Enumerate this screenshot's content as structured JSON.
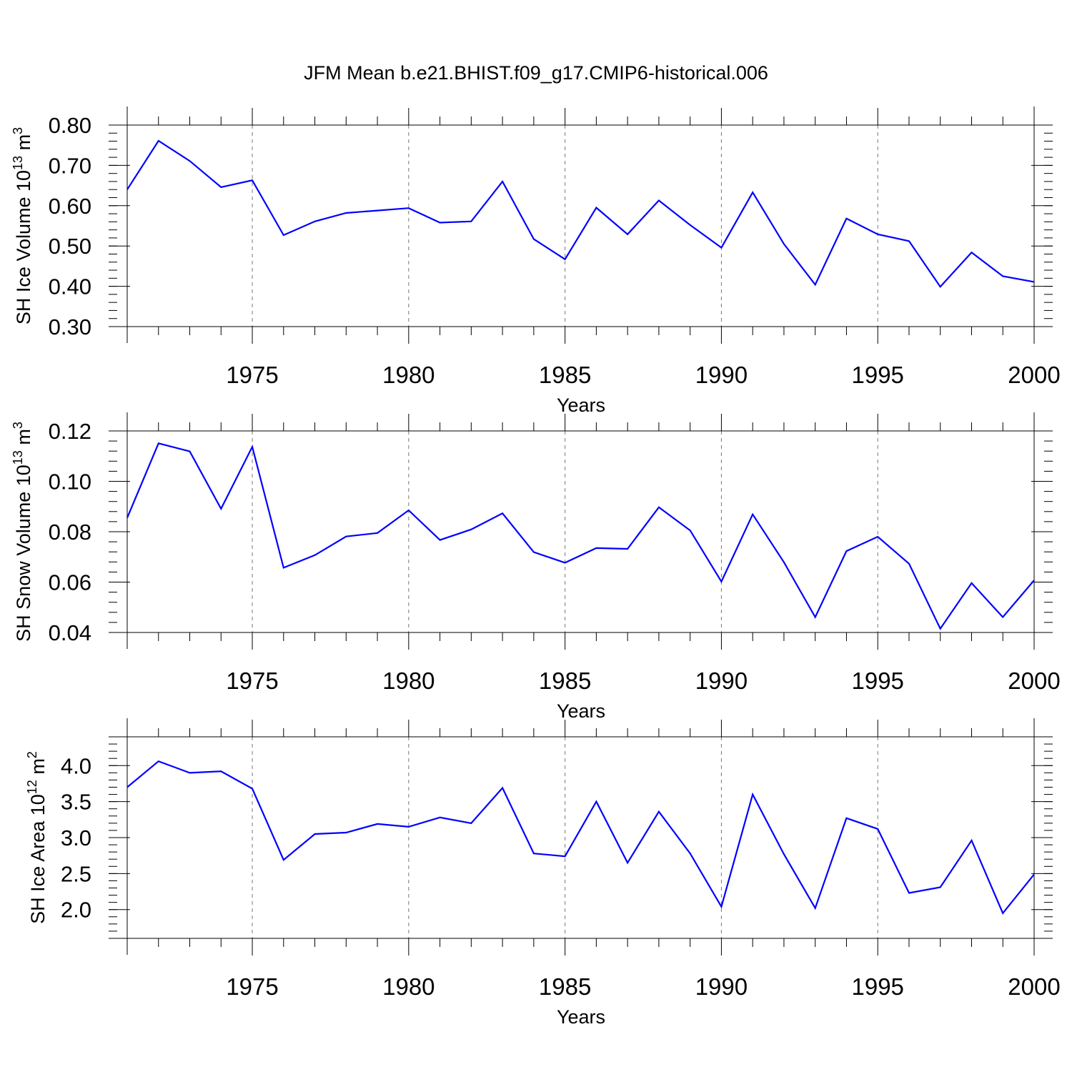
{
  "figure": {
    "title": "JFM Mean b.e21.BHIST.f09_g17.CMIP6-historical.006"
  },
  "chart_data": [
    {
      "type": "line",
      "xlabel": "Years",
      "ylabel": "SH Ice Volume 10",
      "ylabel_exponent": "13",
      "ylabel_unit": "m",
      "ylabel_unit_exponent": "3",
      "xlim": [
        1971,
        2000
      ],
      "ylim": [
        0.3,
        0.8
      ],
      "xticks": [
        1975,
        1980,
        1985,
        1990,
        1995,
        2000
      ],
      "yticks": [
        "0.30",
        "0.40",
        "0.50",
        "0.60",
        "0.70",
        "0.80"
      ],
      "y_minor_step": 0.02,
      "vertical_grid_dashed": true,
      "color": "#0000ff",
      "x": [
        1971,
        1972,
        1973,
        1974,
        1975,
        1976,
        1977,
        1978,
        1979,
        1980,
        1981,
        1982,
        1983,
        1984,
        1985,
        1986,
        1987,
        1988,
        1989,
        1990,
        1991,
        1992,
        1993,
        1994,
        1995,
        1996,
        1997,
        1998,
        1999,
        2000
      ],
      "y": [
        0.64,
        0.761,
        0.711,
        0.646,
        0.663,
        0.527,
        0.561,
        0.582,
        0.588,
        0.594,
        0.558,
        0.561,
        0.66,
        0.517,
        0.467,
        0.595,
        0.529,
        0.613,
        0.552,
        0.496,
        0.633,
        0.505,
        0.404,
        0.568,
        0.529,
        0.512,
        0.399,
        0.484,
        0.425,
        0.411
      ]
    },
    {
      "type": "line",
      "xlabel": "Years",
      "ylabel": "SH Snow Volume 10",
      "ylabel_exponent": "13",
      "ylabel_unit": "m",
      "ylabel_unit_exponent": "3",
      "xlim": [
        1971,
        2000
      ],
      "ylim": [
        0.04,
        0.12
      ],
      "xticks": [
        1975,
        1980,
        1985,
        1990,
        1995,
        2000
      ],
      "yticks": [
        "0.04",
        "0.06",
        "0.08",
        "0.10",
        "0.12"
      ],
      "y_minor_step": 0.004,
      "vertical_grid_dashed": true,
      "color": "#0000ff",
      "x": [
        1971,
        1972,
        1973,
        1974,
        1975,
        1976,
        1977,
        1978,
        1979,
        1980,
        1981,
        1982,
        1983,
        1984,
        1985,
        1986,
        1987,
        1988,
        1989,
        1990,
        1991,
        1992,
        1993,
        1994,
        1995,
        1996,
        1997,
        1998,
        1999,
        2000
      ],
      "y": [
        0.0855,
        0.1151,
        0.1119,
        0.0891,
        0.1137,
        0.0657,
        0.0707,
        0.0781,
        0.0795,
        0.0885,
        0.0767,
        0.0809,
        0.0873,
        0.0719,
        0.0677,
        0.0735,
        0.0732,
        0.0897,
        0.0805,
        0.0602,
        0.0869,
        0.0679,
        0.0461,
        0.0723,
        0.078,
        0.0673,
        0.0415,
        0.0596,
        0.0461,
        0.0607
      ]
    },
    {
      "type": "line",
      "xlabel": "Years",
      "ylabel": "SH Ice Area 10",
      "ylabel_exponent": "12",
      "ylabel_unit": "m",
      "ylabel_unit_exponent": "2",
      "xlim": [
        1971,
        2000
      ],
      "ylim": [
        1.6,
        4.4
      ],
      "xticks": [
        1975,
        1980,
        1985,
        1990,
        1995,
        2000
      ],
      "yticks": [
        "2.0",
        "2.5",
        "3.0",
        "3.5",
        "4.0"
      ],
      "y_minor_step": 0.1,
      "vertical_grid_dashed": true,
      "color": "#0000ff",
      "x": [
        1971,
        1972,
        1973,
        1974,
        1975,
        1976,
        1977,
        1978,
        1979,
        1980,
        1981,
        1982,
        1983,
        1984,
        1985,
        1986,
        1987,
        1988,
        1989,
        1990,
        1991,
        1992,
        1993,
        1994,
        1995,
        1996,
        1997,
        1998,
        1999,
        2000
      ],
      "y": [
        3.7,
        4.06,
        3.9,
        3.92,
        3.68,
        2.69,
        3.05,
        3.07,
        3.19,
        3.15,
        3.28,
        3.2,
        3.69,
        2.78,
        2.74,
        3.5,
        2.65,
        3.36,
        2.78,
        2.04,
        3.6,
        2.77,
        2.02,
        3.27,
        3.12,
        2.23,
        2.31,
        2.96,
        1.95,
        2.49
      ]
    }
  ]
}
